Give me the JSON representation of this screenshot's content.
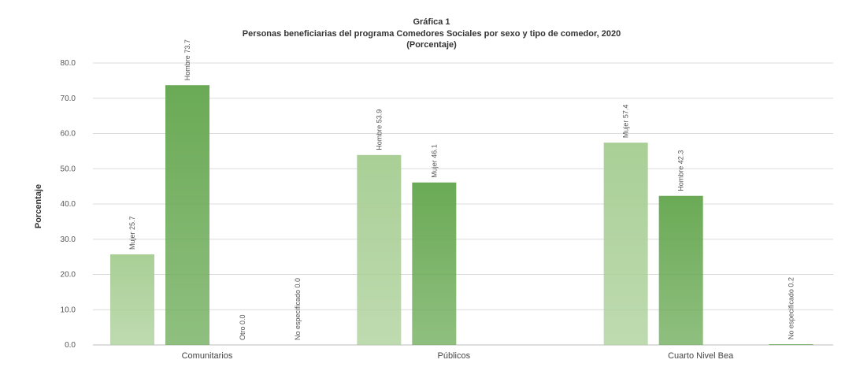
{
  "chart_data": {
    "type": "bar",
    "title": "Gráfica 1",
    "subtitle": "Personas beneficiarias del programa Comedores Sociales por sexo y tipo de comedor, 2020",
    "subtitle2": "(Porcentaje)",
    "ylabel": "Porcentaje",
    "xlabel": "",
    "ylim": [
      0,
      80
    ],
    "yticks": [
      "0.0",
      "10.0",
      "20.0",
      "30.0",
      "40.0",
      "50.0",
      "60.0",
      "70.0",
      "80.0"
    ],
    "grid": true,
    "categories": [
      "Comunitarios",
      "Públicos",
      "Cuarto Nivel Bea"
    ],
    "series": [
      {
        "values": [
          25.7,
          53.9,
          57.4
        ],
        "color": "#a9cf96"
      },
      {
        "values": [
          73.7,
          46.1,
          42.3
        ],
        "color": "#6aaa55"
      },
      {
        "values": [
          0.0,
          null,
          null
        ],
        "color": "#6aaa55"
      },
      {
        "values": [
          0.0,
          null,
          0.2
        ],
        "color": "#6aaa55"
      }
    ],
    "data_labels": [
      [
        "Mujer 25.7",
        "Hombre 53.9",
        "Mujer 57.4"
      ],
      [
        "Hombre 73.7",
        "Mujer 46.1",
        "Hombre 42.3"
      ],
      [
        "Otro 0.0",
        "",
        ""
      ],
      [
        "No especificado 0.0",
        "",
        "No especificado 0.2"
      ]
    ]
  }
}
